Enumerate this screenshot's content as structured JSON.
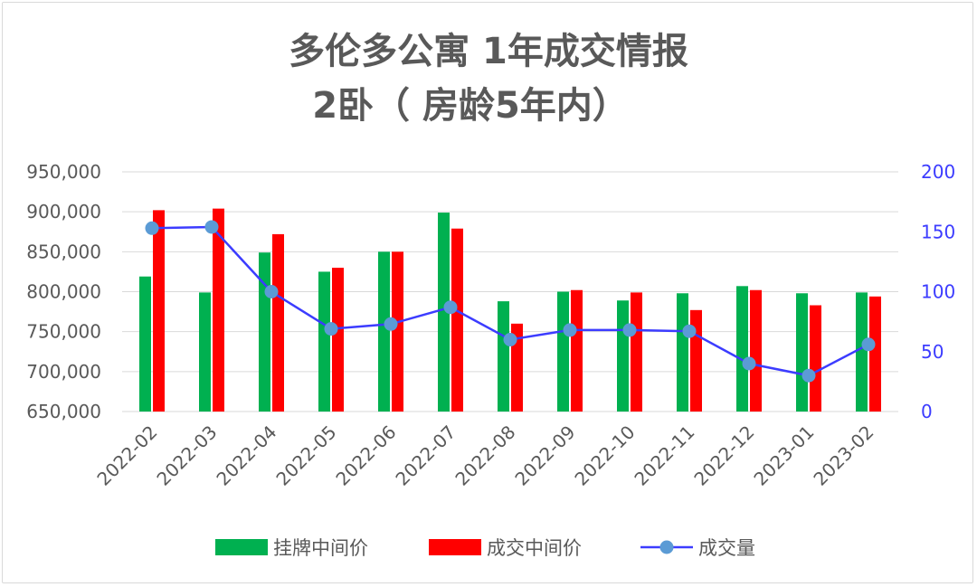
{
  "chart_data": {
    "type": "bar",
    "title_line1": "多伦多公寓 1年成交情报",
    "title_line2": "2卧（ 房龄5年内）",
    "categories": [
      "2022-02",
      "2022-03",
      "2022-04",
      "2022-05",
      "2022-06",
      "2022-07",
      "2022-08",
      "2022-09",
      "2022-10",
      "2022-11",
      "2022-12",
      "2023-01",
      "2023-02"
    ],
    "series": [
      {
        "name": "挂牌中间价",
        "type": "bar",
        "axis": "left",
        "color": "#00b050",
        "values": [
          819000,
          799000,
          849000,
          825000,
          850000,
          899000,
          788000,
          800000,
          789000,
          798000,
          807000,
          798000,
          799000
        ]
      },
      {
        "name": "成交中间价",
        "type": "bar",
        "axis": "left",
        "color": "#ff0000",
        "values": [
          902000,
          904000,
          872000,
          830000,
          850000,
          879000,
          760000,
          802000,
          799000,
          777000,
          802000,
          783000,
          794000
        ]
      },
      {
        "name": "成交量",
        "type": "line",
        "axis": "right",
        "color": "#3c3cff",
        "marker_color": "#5b9bd5",
        "values": [
          153,
          154,
          100,
          69,
          73,
          87,
          60,
          68,
          68,
          67,
          40,
          30,
          56
        ]
      }
    ],
    "y_left": {
      "min": 650000,
      "max": 950000,
      "step": 50000,
      "tick_labels": [
        "650,000",
        "700,000",
        "750,000",
        "800,000",
        "850,000",
        "900,000",
        "950,000"
      ]
    },
    "y_right": {
      "min": 0,
      "max": 200,
      "step": 50,
      "tick_labels": [
        "0",
        "50",
        "100",
        "150",
        "200"
      ]
    },
    "grid": true,
    "legend_position": "bottom"
  }
}
